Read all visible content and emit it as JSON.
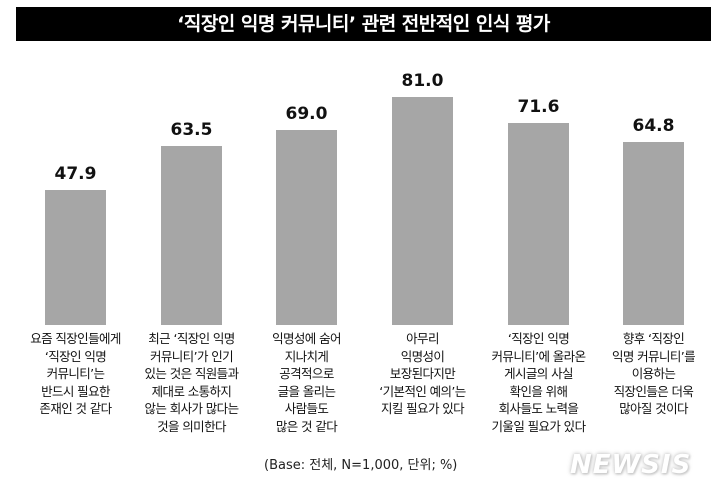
{
  "title": "‘직장인 익명 커뮤니티’ 관련 전반적인 인식 평가",
  "footnote": "(Base: 전체, N=1,000, 단위; %)",
  "watermark": "NEWSIS",
  "colors": {
    "bar": "#a6a6a6",
    "title_bg": "#000000",
    "title_text": "#ffffff"
  },
  "bars": [
    {
      "value": "47.9",
      "lines": [
        "요즘 직장인들에게",
        "‘직장인 익명",
        "커뮤니티’는",
        "반드시 필요한",
        "존재인 것 같다"
      ]
    },
    {
      "value": "63.5",
      "lines": [
        "최근 ‘직장인 익명",
        "커뮤니티’가 인기",
        "있는 것은 직원들과",
        "제대로 소통하지",
        "않는 회사가 많다는",
        "것을 의미한다"
      ]
    },
    {
      "value": "69.0",
      "lines": [
        "익명성에 숨어",
        "지나치게",
        "공격적으로",
        "글을 올리는",
        "사람들도",
        "많은 것 같다"
      ]
    },
    {
      "value": "81.0",
      "lines": [
        "아무리",
        "익명성이",
        "보장된다지만",
        "‘기본적인 예의’는",
        "지킬 필요가 있다"
      ]
    },
    {
      "value": "71.6",
      "lines": [
        "‘직장인 익명",
        "커뮤니티’에 올라온",
        "게시글의 사실",
        "확인을 위해",
        "회사들도 노력을",
        "기울일 필요가 있다"
      ]
    },
    {
      "value": "64.8",
      "lines": [
        "향후 ‘직장인",
        "익명 커뮤니티’를",
        "이용하는",
        "직장인들은 더욱",
        "많아질 것이다"
      ]
    }
  ],
  "chart_data": {
    "type": "bar",
    "title": "‘직장인 익명 커뮤니티’ 관련 전반적인 인식 평가",
    "categories": [
      "요즘 직장인들에게 ‘직장인 익명 커뮤니티’는 반드시 필요한 존재인 것 같다",
      "최근 ‘직장인 익명 커뮤니티’가 인기 있는 것은 직원들과 제대로 소통하지 않는 회사가 많다는 것을 의미한다",
      "익명성에 숨어 지나치게 공격적으로 글을 올리는 사람들도 많은 것 같다",
      "아무리 익명성이 보장된다지만 ‘기본적인 예의’는 지킬 필요가 있다",
      "‘직장인 익명 커뮤니티’에 올라온 게시글의 사실 확인을 위해 회사들도 노력을 기울일 필요가 있다",
      "향후 ‘직장인 익명 커뮤니티’를 이용하는 직장인들은 더욱 많아질 것이다"
    ],
    "values": [
      47.9,
      63.5,
      69.0,
      81.0,
      71.6,
      64.8
    ],
    "xlabel": "",
    "ylabel": "%",
    "ylim": [
      0,
      100
    ],
    "grid": false,
    "legend": "none",
    "note": "(Base: 전체, N=1,000, 단위; %)"
  }
}
